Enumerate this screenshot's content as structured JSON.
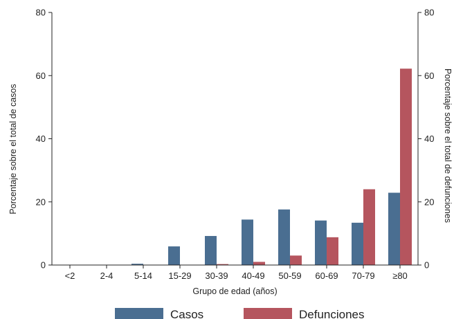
{
  "chart_data": {
    "type": "bar",
    "xlabel": "Grupo de edad (años)",
    "ylabel_left": "Porcentaje sobre el total de casos",
    "ylabel_right": "Porcentaje sobre el total de defunciones",
    "ylim": [
      0,
      80
    ],
    "yticks": [
      0,
      20,
      40,
      60,
      80
    ],
    "categories": [
      "<2",
      "2-4",
      "5-14",
      "15-29",
      "30-39",
      "40-49",
      "50-59",
      "60-69",
      "70-79",
      "≥80"
    ],
    "series": [
      {
        "name": "Casos",
        "color": "#4a6e91",
        "axis": "left",
        "values": [
          0.1,
          0.1,
          0.4,
          5.9,
          9.2,
          14.4,
          17.6,
          14.1,
          13.4,
          22.9
        ]
      },
      {
        "name": "Defunciones",
        "color": "#b5555e",
        "axis": "right",
        "values": [
          0,
          0,
          0,
          0.1,
          0.3,
          1.0,
          3.0,
          8.8,
          24.0,
          62.2
        ]
      }
    ],
    "grid": false,
    "legend_position": "bottom"
  }
}
